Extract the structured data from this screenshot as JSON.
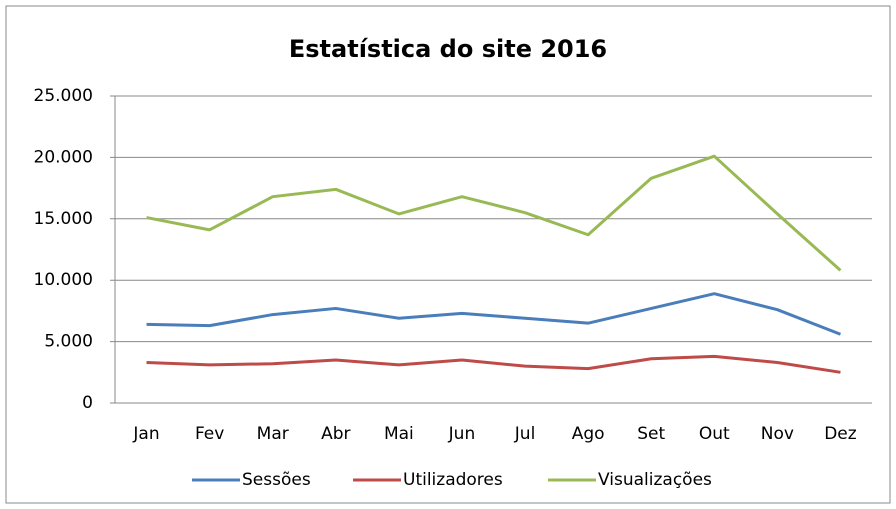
{
  "chart_data": {
    "type": "line",
    "title": "Estatística do site 2016",
    "categories": [
      "Jan",
      "Fev",
      "Mar",
      "Abr",
      "Mai",
      "Jun",
      "Jul",
      "Ago",
      "Set",
      "Out",
      "Nov",
      "Dez"
    ],
    "series": [
      {
        "name": "Sessões",
        "color": "#4a7ebb",
        "values": [
          6400,
          6300,
          7200,
          7700,
          6900,
          7300,
          6900,
          6500,
          7700,
          8900,
          7600,
          5600
        ]
      },
      {
        "name": "Utilizadores",
        "color": "#be4b48",
        "values": [
          3300,
          3100,
          3200,
          3500,
          3100,
          3500,
          3000,
          2800,
          3600,
          3800,
          3300,
          2500
        ]
      },
      {
        "name": "Visualizações",
        "color": "#98b954",
        "values": [
          15100,
          14100,
          16800,
          17400,
          15400,
          16800,
          15500,
          13700,
          18300,
          20100,
          15400,
          10800
        ]
      }
    ],
    "ylim": [
      0,
      25000
    ],
    "yticks": [
      0,
      {
        "value": 5000,
        "label": "5.000"
      },
      {
        "value": 10000,
        "label": "10.000"
      },
      {
        "value": 15000,
        "label": "15.000"
      },
      {
        "value": 20000,
        "label": "20.000"
      },
      {
        "value": 25000,
        "label": "25.000"
      }
    ],
    "grid": true,
    "legend": "bottom"
  }
}
